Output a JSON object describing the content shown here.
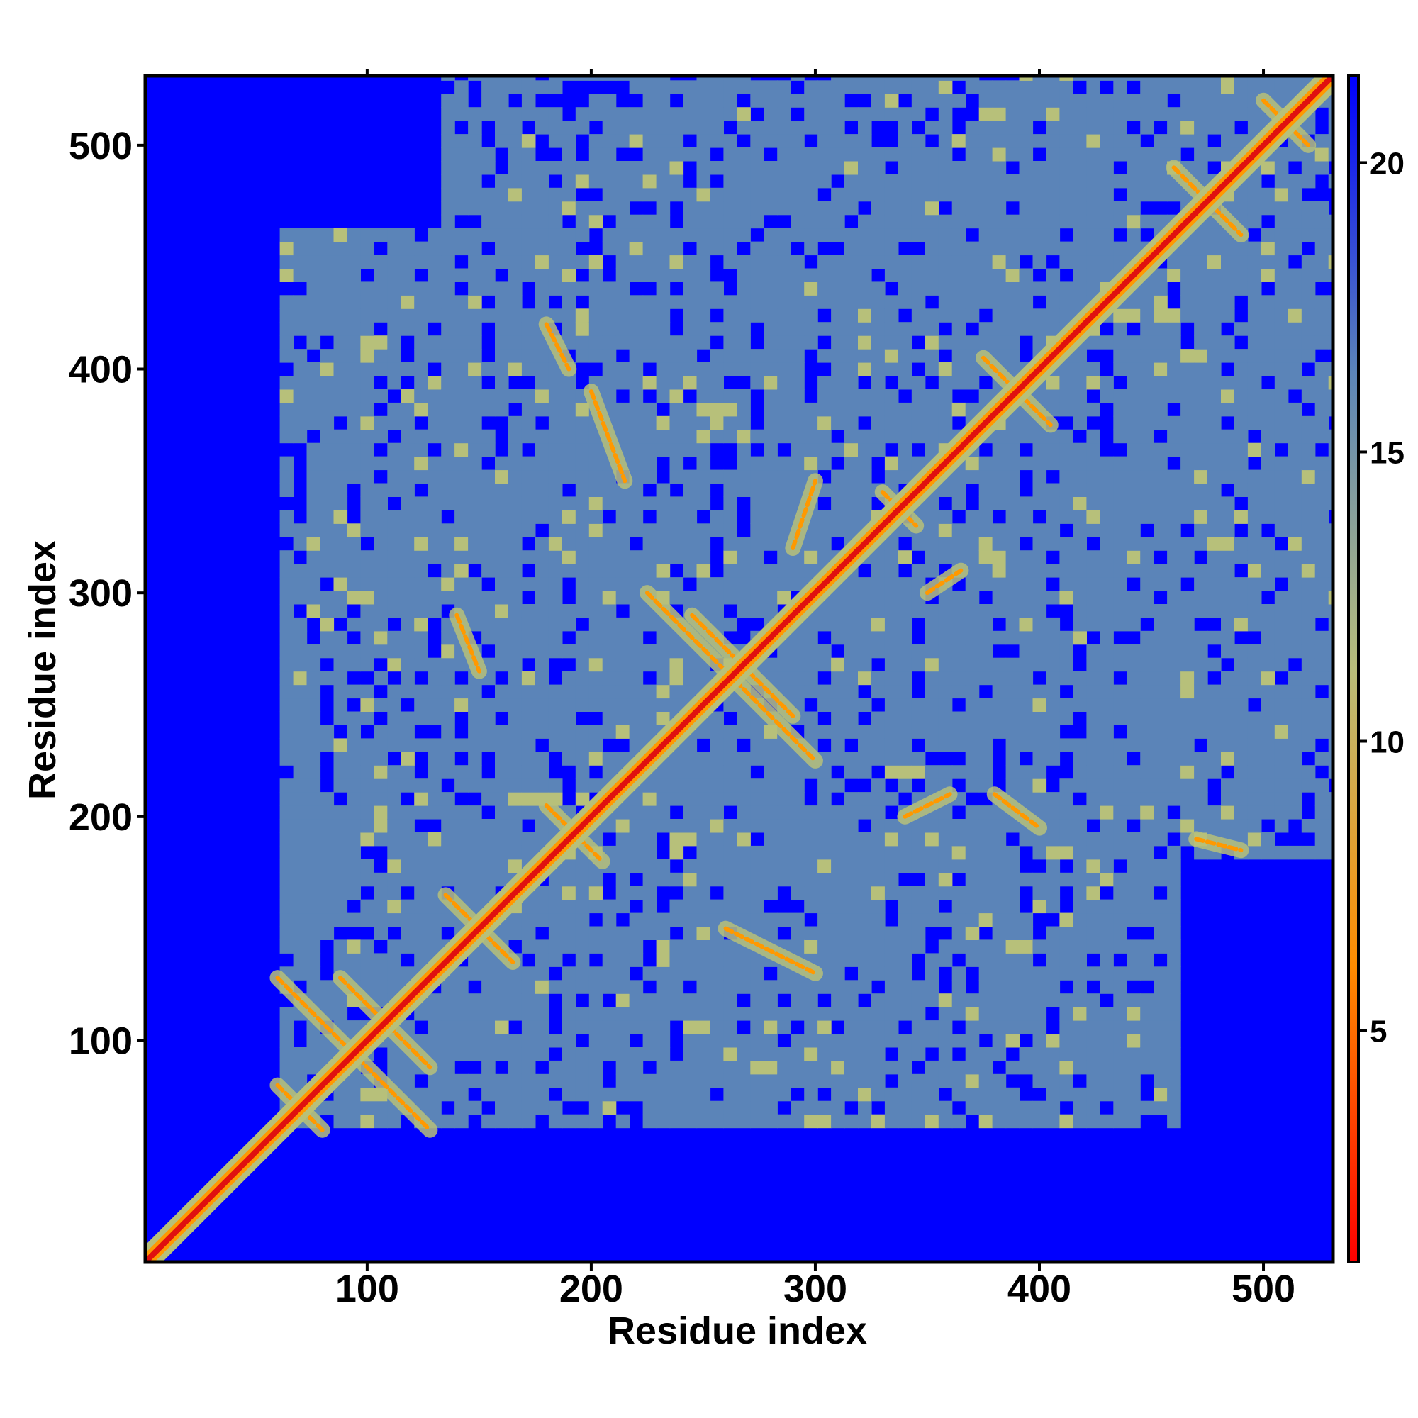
{
  "chart_data": {
    "type": "heatmap",
    "title": "",
    "xlabel": "Residue index",
    "ylabel": "Residue index",
    "xlim": [
      1,
      531
    ],
    "ylim": [
      1,
      531
    ],
    "x_ticks": [
      100,
      200,
      300,
      400,
      500
    ],
    "y_ticks": [
      100,
      200,
      300,
      400,
      500
    ],
    "x_tick_labels": [
      "100",
      "200",
      "300",
      "400",
      "500"
    ],
    "y_tick_labels": [
      "100",
      "200",
      "300",
      "400",
      "500"
    ],
    "colorbar": {
      "range": [
        1,
        21.5
      ],
      "ticks": [
        5,
        10,
        15,
        20
      ],
      "tick_labels": [
        "5",
        "10",
        "15",
        "20"
      ],
      "colors": [
        "#ff0000",
        "#ff8c00",
        "#b8bd7a",
        "#5b84b8",
        "#0000ff"
      ]
    },
    "color_scale": {
      "near": "#e01010",
      "contact": "#ff9900",
      "medium": "#b7c07a",
      "far": "#5b84b8",
      "none": "#0000ff"
    },
    "diagonal": {
      "from": 1,
      "to": 531
    },
    "dense_regions": [
      {
        "x": [
          60,
          130
        ],
        "y": [
          60,
          130
        ]
      },
      {
        "x": [
          130,
          460
        ],
        "y": [
          60,
          460
        ]
      },
      {
        "x": [
          130,
          530
        ],
        "y": [
          180,
          530
        ]
      },
      {
        "x": [
          60,
          180
        ],
        "y": [
          130,
          460
        ]
      }
    ],
    "contact_features": [
      {
        "x1": 60,
        "y1": 128,
        "x2": 128,
        "y2": 60
      },
      {
        "x1": 88,
        "y1": 128,
        "x2": 128,
        "y2": 88
      },
      {
        "x1": 60,
        "y1": 80,
        "x2": 80,
        "y2": 60
      },
      {
        "x1": 135,
        "y1": 165,
        "x2": 165,
        "y2": 135
      },
      {
        "x1": 180,
        "y1": 205,
        "x2": 205,
        "y2": 180
      },
      {
        "x1": 225,
        "y1": 300,
        "x2": 300,
        "y2": 225
      },
      {
        "x1": 245,
        "y1": 290,
        "x2": 290,
        "y2": 245
      },
      {
        "x1": 260,
        "y1": 150,
        "x2": 300,
        "y2": 130
      },
      {
        "x1": 330,
        "y1": 345,
        "x2": 345,
        "y2": 330
      },
      {
        "x1": 340,
        "y1": 200,
        "x2": 360,
        "y2": 210
      },
      {
        "x1": 375,
        "y1": 405,
        "x2": 405,
        "y2": 375
      },
      {
        "x1": 380,
        "y1": 210,
        "x2": 400,
        "y2": 195
      },
      {
        "x1": 460,
        "y1": 490,
        "x2": 490,
        "y2": 460
      },
      {
        "x1": 470,
        "y1": 190,
        "x2": 490,
        "y2": 185
      },
      {
        "x1": 200,
        "y1": 390,
        "x2": 215,
        "y2": 350
      },
      {
        "x1": 180,
        "y1": 420,
        "x2": 190,
        "y2": 400
      },
      {
        "x1": 140,
        "y1": 290,
        "x2": 150,
        "y2": 265
      },
      {
        "x1": 290,
        "y1": 320,
        "x2": 300,
        "y2": 350
      },
      {
        "x1": 350,
        "y1": 300,
        "x2": 365,
        "y2": 310
      },
      {
        "x1": 500,
        "y1": 520,
        "x2": 520,
        "y2": 500
      }
    ],
    "grid": false,
    "legend": "right colorbar"
  }
}
